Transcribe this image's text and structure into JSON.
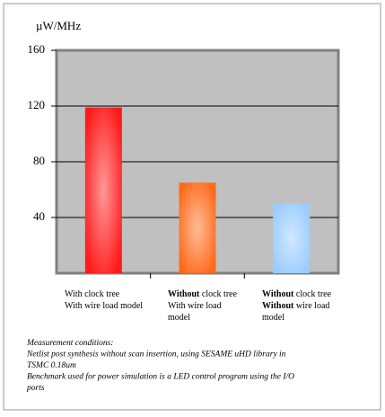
{
  "chart_data": {
    "type": "bar",
    "y_label": "µW/MHz",
    "categories": [
      [
        [
          {
            "text": "With clock tree",
            "bold": false
          }
        ],
        [
          {
            "text": "With wire load model",
            "bold": false
          }
        ]
      ],
      [
        [
          {
            "text": "Without",
            "bold": true
          },
          {
            "text": " clock tree",
            "bold": false
          }
        ],
        [
          {
            "text": "With wire load",
            "bold": false
          }
        ],
        [
          {
            "text": "model",
            "bold": false
          }
        ]
      ],
      [
        [
          {
            "text": "Without",
            "bold": true
          },
          {
            "text": " clock tree",
            "bold": false
          }
        ],
        [
          {
            "text": "Without",
            "bold": true
          },
          {
            "text": " wire load",
            "bold": false
          }
        ],
        [
          {
            "text": "model",
            "bold": false
          }
        ]
      ]
    ],
    "values": [
      119,
      65,
      50
    ],
    "colors": [
      "#ff1a1a",
      "#ff6a1a",
      "#99ccff"
    ],
    "ylim": [
      0,
      160
    ],
    "yticks": [
      40,
      80,
      120,
      160
    ],
    "grid": true,
    "notes": [
      "Measurement conditions:",
      "Netlist post synthesis without scan insertion, using SESAME uHD library in",
      "TSMC 0.18um",
      "Benchmark used for power simulation is a LED control program using the I/O",
      "ports"
    ]
  }
}
